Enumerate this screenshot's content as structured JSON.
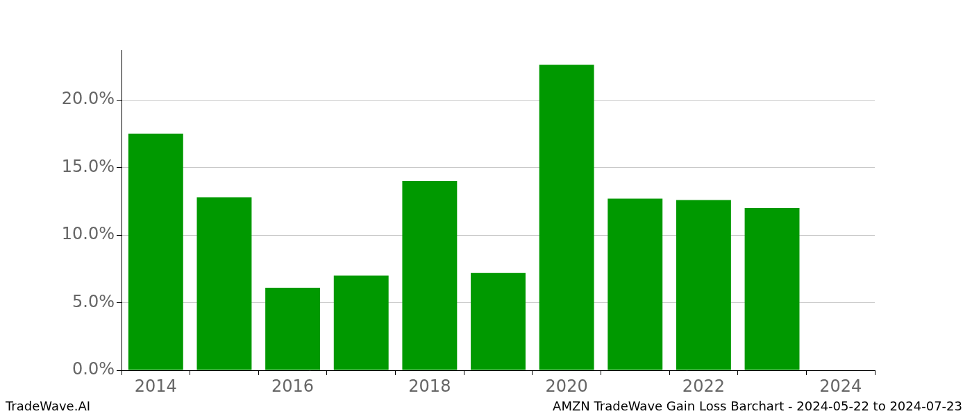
{
  "chart_data": {
    "type": "bar",
    "title": "AMZN TradeWave Gain Loss Barchart - 2024-05-22 to 2024-07-23",
    "annotations": [
      "TradeWave.AI"
    ],
    "categories": [
      "2014",
      null,
      "2016",
      null,
      "2018",
      null,
      "2020",
      null,
      "2022",
      null,
      "2024"
    ],
    "values": [
      17.5,
      12.8,
      6.1,
      7.0,
      14.0,
      7.2,
      22.6,
      12.7,
      12.6,
      12.0,
      null
    ],
    "color": "#009900",
    "ylim": [
      0,
      23.7
    ],
    "yticks": [
      {
        "value": 0,
        "label": "0.0%"
      },
      {
        "value": 5,
        "label": "5.0%"
      },
      {
        "value": 10,
        "label": "10.0%"
      },
      {
        "value": 15,
        "label": "15.0%"
      },
      {
        "value": 20,
        "label": "20.0%"
      }
    ],
    "grid": true
  }
}
